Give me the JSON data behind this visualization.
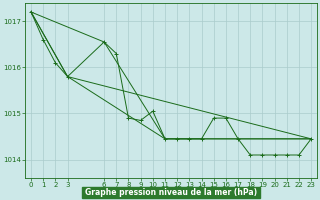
{
  "background_color": "#cce8e8",
  "grid_color": "#aacccc",
  "line_color": "#1a6b1a",
  "xlabel": "Graphe pression niveau de la mer (hPa)",
  "xlabel_bg": "#2d7a2d",
  "xlabel_fg": "#ffffff",
  "yticks": [
    1014,
    1015,
    1016,
    1017
  ],
  "xticks": [
    0,
    1,
    2,
    3,
    6,
    7,
    8,
    9,
    10,
    11,
    12,
    13,
    14,
    15,
    16,
    17,
    18,
    19,
    20,
    21,
    22,
    23
  ],
  "xlim": [
    -0.5,
    23.5
  ],
  "ylim": [
    1013.6,
    1017.4
  ],
  "series": [
    [
      0,
      1017.2
    ],
    [
      1,
      1016.6
    ],
    [
      2,
      1016.1
    ],
    [
      3,
      1015.8
    ],
    [
      6,
      1016.55
    ],
    [
      7,
      1016.3
    ],
    [
      8,
      1014.9
    ],
    [
      9,
      1014.85
    ],
    [
      10,
      1015.05
    ],
    [
      11,
      1014.45
    ],
    [
      12,
      1014.45
    ],
    [
      13,
      1014.45
    ],
    [
      14,
      1014.45
    ],
    [
      15,
      1014.9
    ],
    [
      16,
      1014.9
    ],
    [
      17,
      1014.45
    ],
    [
      18,
      1014.1
    ],
    [
      19,
      1014.1
    ],
    [
      20,
      1014.1
    ],
    [
      21,
      1014.1
    ],
    [
      22,
      1014.1
    ],
    [
      23,
      1014.45
    ]
  ],
  "trend_lines": [
    [
      [
        0,
        1017.2
      ],
      [
        3,
        1015.8
      ],
      [
        23,
        1014.45
      ]
    ],
    [
      [
        0,
        1017.2
      ],
      [
        6,
        1016.55
      ],
      [
        11,
        1014.45
      ],
      [
        23,
        1014.45
      ]
    ],
    [
      [
        0,
        1017.2
      ],
      [
        3,
        1015.8
      ],
      [
        11,
        1014.45
      ],
      [
        23,
        1014.45
      ]
    ]
  ]
}
